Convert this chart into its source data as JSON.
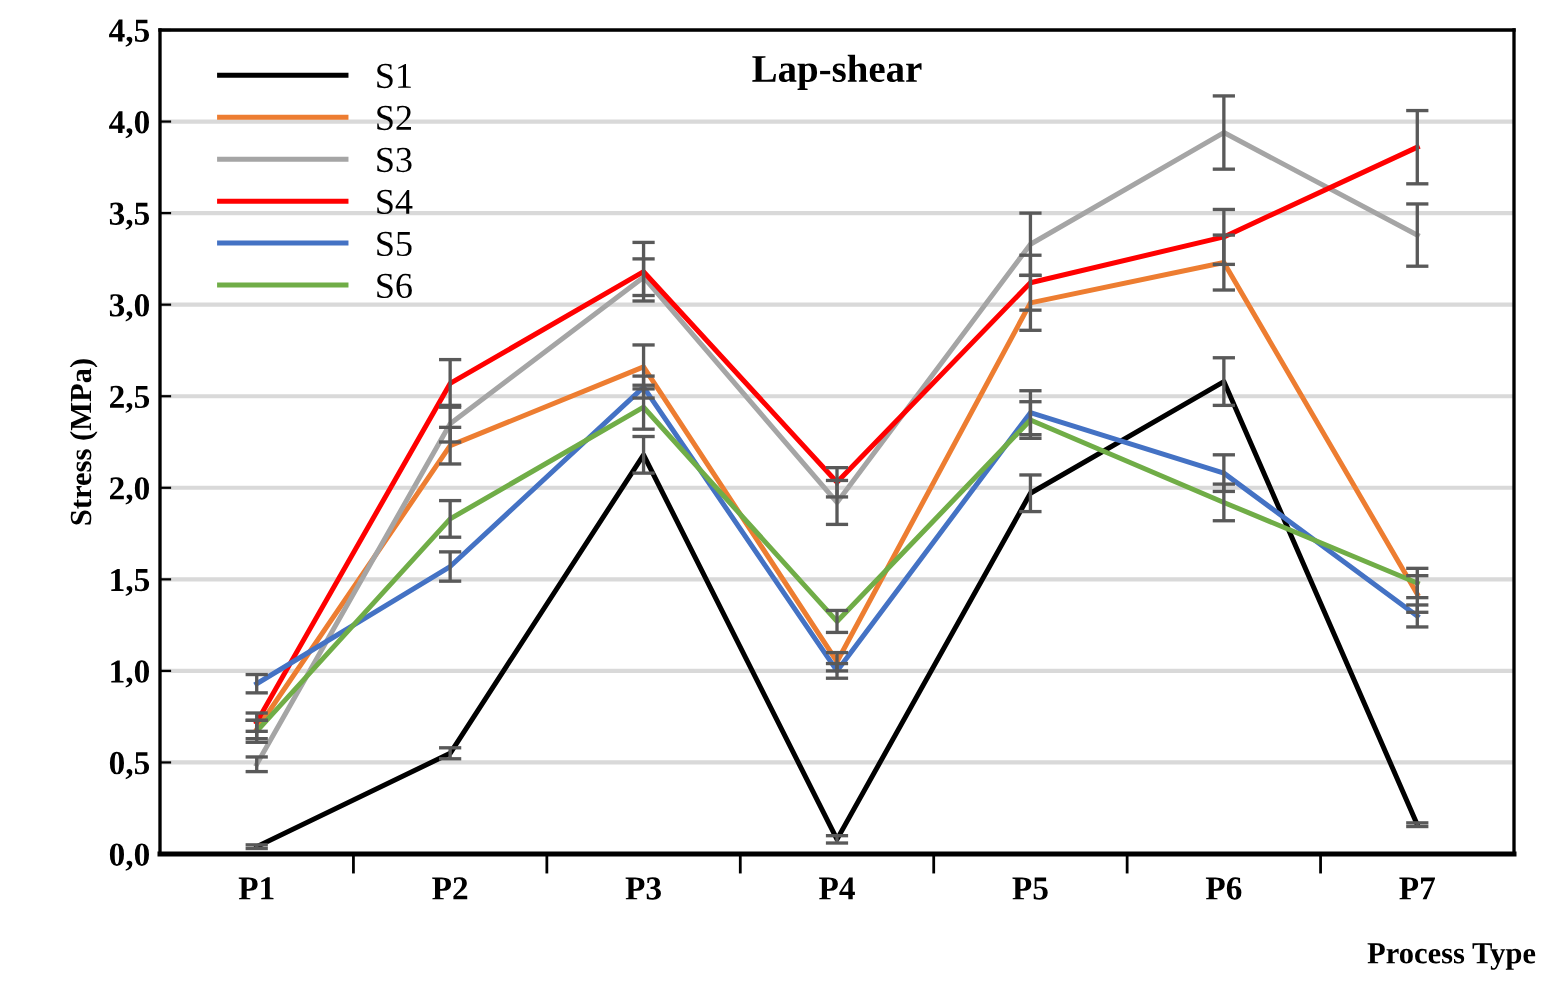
{
  "chart_data": {
    "type": "line",
    "title": "Lap-shear",
    "xlabel": "Process Type",
    "ylabel": "Stress (MPa)",
    "categories": [
      "P1",
      "P2",
      "P3",
      "P4",
      "P5",
      "P6",
      "P7"
    ],
    "series": [
      {
        "name": "S1",
        "color": "#000000",
        "values": [
          0.04,
          0.55,
          2.18,
          0.08,
          1.97,
          2.58,
          0.16
        ],
        "errors": [
          0.01,
          0.03,
          0.1,
          0.02,
          0.1,
          0.13,
          0.01
        ]
      },
      {
        "name": "S2",
        "color": "#ed7d31",
        "values": [
          0.68,
          2.23,
          2.66,
          1.05,
          3.01,
          3.23,
          1.42
        ],
        "errors": [
          0.05,
          0.1,
          0.12,
          0.05,
          0.15,
          0.15,
          0.1
        ]
      },
      {
        "name": "S3",
        "color": "#a5a5a5",
        "values": [
          0.49,
          2.35,
          3.15,
          1.92,
          3.33,
          3.94,
          3.38
        ],
        "errors": [
          0.04,
          0.1,
          0.1,
          0.12,
          0.17,
          0.2,
          0.17
        ]
      },
      {
        "name": "S4",
        "color": "#ff0000",
        "values": [
          0.72,
          2.57,
          3.18,
          2.03,
          3.12,
          3.37,
          3.86
        ],
        "errors": [
          0.05,
          0.13,
          0.16,
          0.08,
          0.15,
          0.15,
          0.2
        ]
      },
      {
        "name": "S5",
        "color": "#4472c4",
        "values": [
          0.93,
          1.57,
          2.55,
          1.0,
          2.41,
          2.08,
          1.3
        ],
        "errors": [
          0.05,
          0.08,
          0.06,
          0.04,
          0.12,
          0.1,
          0.06
        ]
      },
      {
        "name": "S6",
        "color": "#70ad47",
        "values": [
          0.67,
          1.83,
          2.44,
          1.27,
          2.37,
          1.92,
          1.48
        ],
        "errors": [
          0.06,
          0.1,
          0.12,
          0.06,
          0.1,
          0.1,
          0.08
        ]
      }
    ],
    "ylim": [
      0,
      4.5
    ],
    "yticks": [
      {
        "value": 0,
        "label": "0,0"
      },
      {
        "value": 0.5,
        "label": "0,5"
      },
      {
        "value": 1,
        "label": "1,0"
      },
      {
        "value": 1.5,
        "label": "1,5"
      },
      {
        "value": 2,
        "label": "2,0"
      },
      {
        "value": 2.5,
        "label": "2,5"
      },
      {
        "value": 3,
        "label": "3,0"
      },
      {
        "value": 3.5,
        "label": "3,5"
      },
      {
        "value": 4,
        "label": "4,0"
      },
      {
        "value": 4.5,
        "label": "4,5"
      }
    ],
    "grid": "y",
    "legend": "top left",
    "marker": "none",
    "line_style": "solid"
  }
}
